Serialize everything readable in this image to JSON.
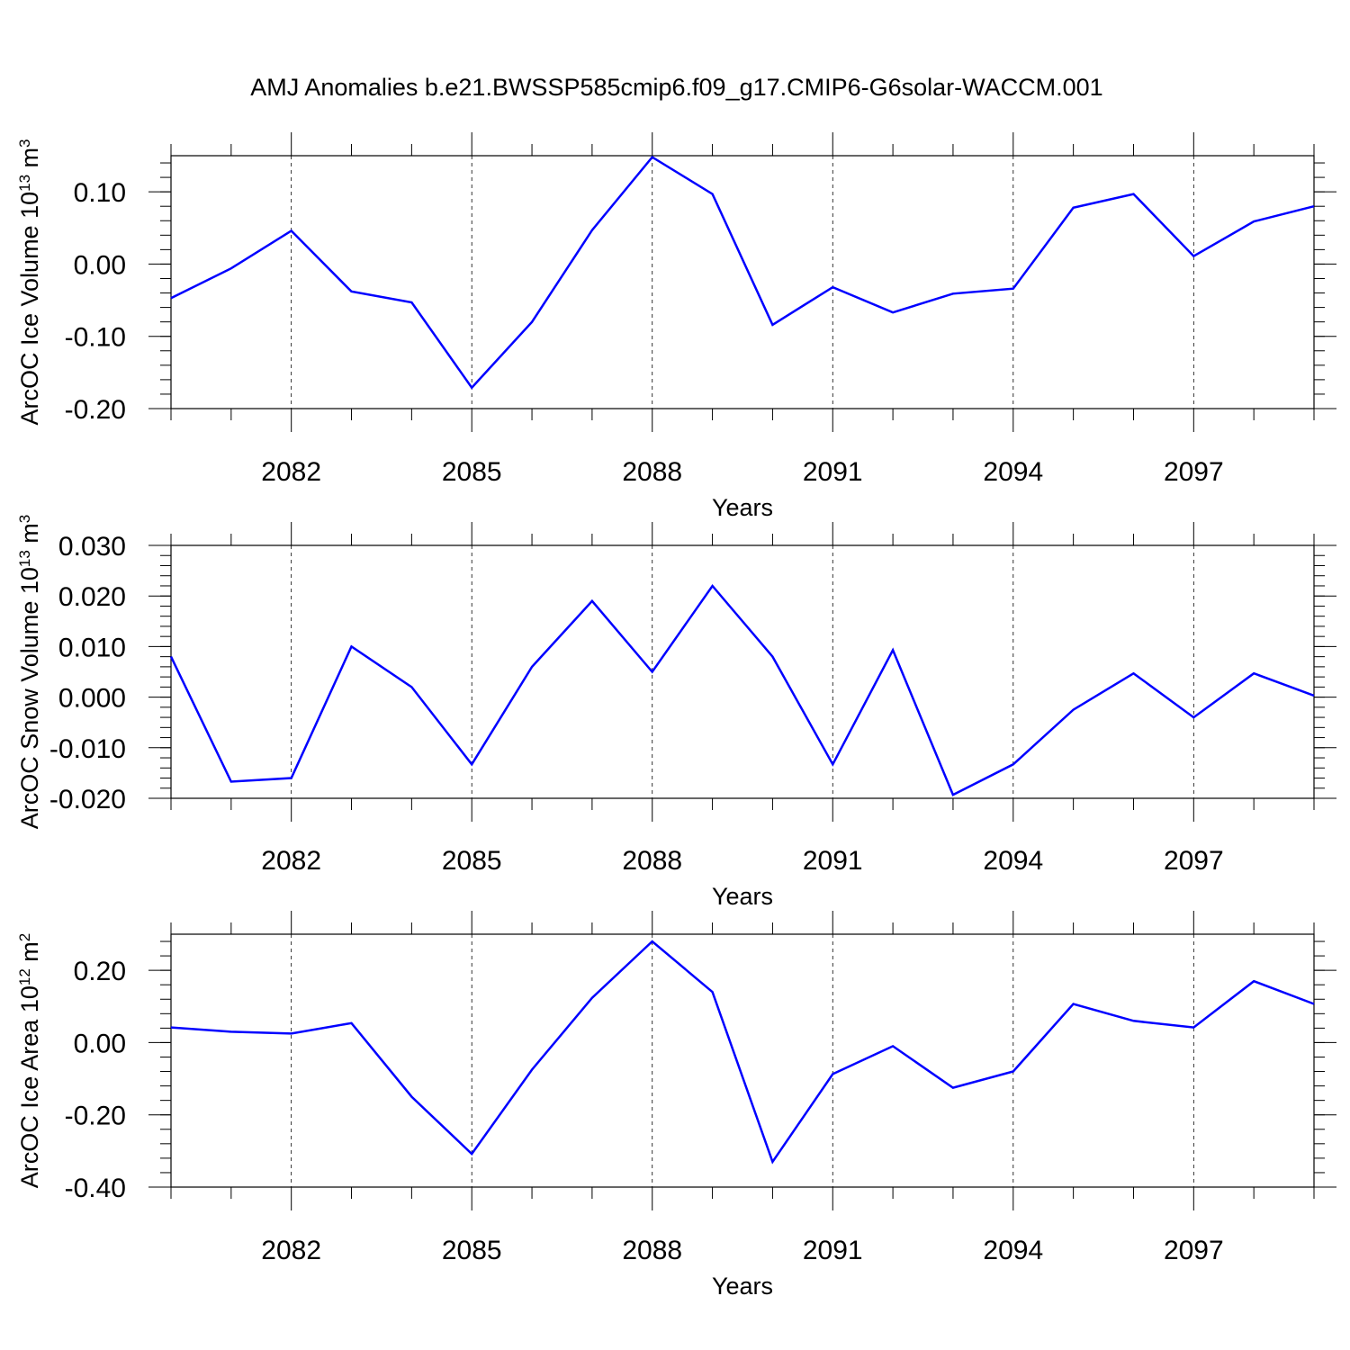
{
  "title": "AMJ Anomalies b.e21.BWSSP585cmip6.f09_g17.CMIP6-G6solar-WACCM.001",
  "chart_data": [
    {
      "type": "line",
      "ylabel": {
        "base": "ArcOC Ice Volume 10",
        "exp": "13",
        "unit": " m",
        "unit_exp": "3"
      },
      "xlabel": "Years",
      "x": [
        2080,
        2081,
        2082,
        2083,
        2084,
        2085,
        2086,
        2087,
        2088,
        2089,
        2090,
        2091,
        2092,
        2093,
        2094,
        2095,
        2096,
        2097,
        2098,
        2099
      ],
      "values": [
        -0.047,
        -0.006,
        0.046,
        -0.038,
        -0.053,
        -0.171,
        -0.08,
        0.047,
        0.148,
        0.097,
        -0.084,
        -0.032,
        -0.067,
        -0.041,
        -0.034,
        0.078,
        0.097,
        0.011,
        0.059,
        0.08
      ],
      "xlim": [
        2080,
        2099
      ],
      "ylim": [
        -0.2,
        0.15
      ],
      "yticks": [
        -0.2,
        -0.1,
        0.0,
        0.1
      ],
      "ytick_labels": [
        "-0.20",
        "-0.10",
        "0.00",
        "0.10"
      ],
      "xticks": [
        2082,
        2085,
        2088,
        2091,
        2094,
        2097
      ],
      "xtick_labels": [
        "2082",
        "2085",
        "2088",
        "2091",
        "2094",
        "2097"
      ],
      "minor_y_step": 0.02,
      "line_color": "#0000ff",
      "grid": "dashed vertical at major x ticks"
    },
    {
      "type": "line",
      "ylabel": {
        "base": "ArcOC Snow Volume 10",
        "exp": "13",
        "unit": " m",
        "unit_exp": "3"
      },
      "xlabel": "Years",
      "x": [
        2080,
        2081,
        2082,
        2083,
        2084,
        2085,
        2086,
        2087,
        2088,
        2089,
        2090,
        2091,
        2092,
        2093,
        2094,
        2095,
        2096,
        2097,
        2098,
        2099
      ],
      "values": [
        0.008,
        -0.0167,
        -0.016,
        0.01,
        0.002,
        -0.0133,
        0.006,
        0.019,
        0.005,
        0.022,
        0.008,
        -0.0133,
        0.0093,
        -0.0193,
        -0.0133,
        -0.0025,
        0.0047,
        -0.004,
        0.0047,
        0.0003
      ],
      "xlim": [
        2080,
        2099
      ],
      "ylim": [
        -0.02,
        0.03
      ],
      "yticks": [
        -0.02,
        -0.01,
        0.0,
        0.01,
        0.02,
        0.03
      ],
      "ytick_labels": [
        "-0.020",
        "-0.010",
        "0.000",
        "0.010",
        "0.020",
        "0.030"
      ],
      "xticks": [
        2082,
        2085,
        2088,
        2091,
        2094,
        2097
      ],
      "xtick_labels": [
        "2082",
        "2085",
        "2088",
        "2091",
        "2094",
        "2097"
      ],
      "minor_y_step": 0.002,
      "line_color": "#0000ff",
      "grid": "dashed vertical at major x ticks"
    },
    {
      "type": "line",
      "ylabel": {
        "base": "ArcOC Ice Area 10",
        "exp": "12",
        "unit": " m",
        "unit_exp": "2"
      },
      "xlabel": "Years",
      "x": [
        2080,
        2081,
        2082,
        2083,
        2084,
        2085,
        2086,
        2087,
        2088,
        2089,
        2090,
        2091,
        2092,
        2093,
        2094,
        2095,
        2096,
        2097,
        2098,
        2099
      ],
      "values": [
        0.042,
        0.03,
        0.025,
        0.054,
        -0.15,
        -0.308,
        -0.075,
        0.124,
        0.28,
        0.14,
        -0.33,
        -0.087,
        -0.01,
        -0.125,
        -0.08,
        0.107,
        0.06,
        0.042,
        0.17,
        0.107
      ],
      "xlim": [
        2080,
        2099
      ],
      "ylim": [
        -0.4,
        0.3
      ],
      "yticks": [
        -0.4,
        -0.2,
        0.0,
        0.2
      ],
      "ytick_labels": [
        "-0.40",
        "-0.20",
        "0.00",
        "0.20"
      ],
      "xticks": [
        2082,
        2085,
        2088,
        2091,
        2094,
        2097
      ],
      "xtick_labels": [
        "2082",
        "2085",
        "2088",
        "2091",
        "2094",
        "2097"
      ],
      "minor_y_step": 0.04,
      "line_color": "#0000ff",
      "grid": "dashed vertical at major x ticks"
    }
  ]
}
